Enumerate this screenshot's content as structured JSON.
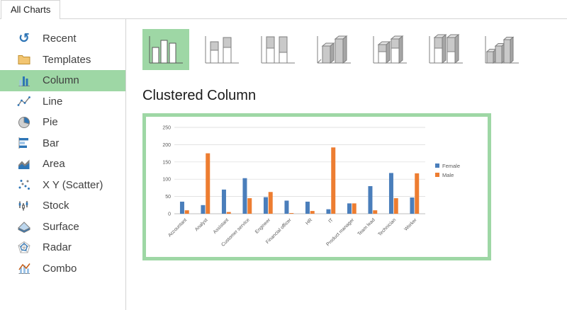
{
  "tabs": {
    "all_charts": "All Charts"
  },
  "colors": {
    "accent_green": "#9ed7a5"
  },
  "sidebar": {
    "items": [
      {
        "label": "Recent",
        "icon": "recent-icon",
        "selected": false
      },
      {
        "label": "Templates",
        "icon": "templates-icon",
        "selected": false
      },
      {
        "label": "Column",
        "icon": "column-icon",
        "selected": true
      },
      {
        "label": "Line",
        "icon": "line-icon",
        "selected": false
      },
      {
        "label": "Pie",
        "icon": "pie-icon",
        "selected": false
      },
      {
        "label": "Bar",
        "icon": "bar-icon",
        "selected": false
      },
      {
        "label": "Area",
        "icon": "area-icon",
        "selected": false
      },
      {
        "label": "X Y (Scatter)",
        "icon": "scatter-icon",
        "selected": false
      },
      {
        "label": "Stock",
        "icon": "stock-icon",
        "selected": false
      },
      {
        "label": "Surface",
        "icon": "surface-icon",
        "selected": false
      },
      {
        "label": "Radar",
        "icon": "radar-icon",
        "selected": false
      },
      {
        "label": "Combo",
        "icon": "combo-icon",
        "selected": false
      }
    ]
  },
  "subtypes": {
    "items": [
      {
        "name": "Clustered Column",
        "selected": true
      },
      {
        "name": "Stacked Column",
        "selected": false
      },
      {
        "name": "100% Stacked Column",
        "selected": false
      },
      {
        "name": "3-D Clustered Column",
        "selected": false
      },
      {
        "name": "3-D Stacked Column",
        "selected": false
      },
      {
        "name": "3-D 100% Stacked Column",
        "selected": false
      },
      {
        "name": "3-D Column",
        "selected": false
      }
    ]
  },
  "main": {
    "subtype_title": "Clustered Column"
  },
  "chart_data": {
    "type": "bar",
    "title": "",
    "xlabel": "",
    "ylabel": "",
    "categories": [
      "Accountant",
      "Analyst",
      "Assistant",
      "Customer service",
      "Engineer",
      "Financial officer",
      "HR",
      "IT",
      "Product manager",
      "Team lead",
      "Technician",
      "Worker"
    ],
    "series": [
      {
        "name": "Female",
        "color": "#4a7ebb",
        "values": [
          35,
          25,
          70,
          103,
          48,
          38,
          35,
          13,
          30,
          80,
          118,
          47
        ]
      },
      {
        "name": "Male",
        "color": "#ED7D31",
        "values": [
          10,
          175,
          5,
          45,
          63,
          2,
          8,
          192,
          30,
          10,
          45,
          117
        ]
      }
    ],
    "ylim": [
      0,
      250
    ],
    "ytick_step": 50,
    "grid": true,
    "legend_position": "right"
  }
}
